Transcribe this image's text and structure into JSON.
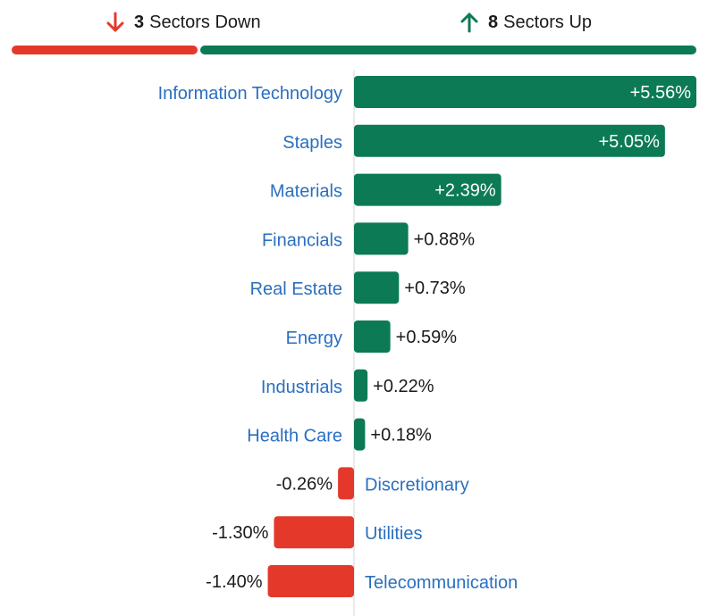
{
  "summary": {
    "down": {
      "count": "3",
      "label": "Sectors Down",
      "icon": "arrow-down-icon",
      "color": "#e4392a"
    },
    "up": {
      "count": "8",
      "label": "Sectors Up",
      "icon": "arrow-up-icon",
      "color": "#0b7a55"
    }
  },
  "colors": {
    "positive": "#0b7a55",
    "negative": "#e4392a",
    "label": "#2a6fbf",
    "value_dark": "#1a1a1a",
    "value_light": "#ffffff"
  },
  "chart_data": {
    "type": "bar",
    "orientation": "horizontal",
    "unit": "%",
    "categories": [
      "Information Technology",
      "Staples",
      "Materials",
      "Financials",
      "Real Estate",
      "Energy",
      "Industrials",
      "Health Care",
      "Discretionary",
      "Utilities",
      "Telecommunication"
    ],
    "values": [
      5.56,
      5.05,
      2.39,
      0.88,
      0.73,
      0.59,
      0.22,
      0.18,
      -0.26,
      -1.3,
      -1.4
    ],
    "value_labels": [
      "+5.56%",
      "+5.05%",
      "+2.39%",
      "+0.88%",
      "+0.73%",
      "+0.59%",
      "+0.22%",
      "+0.18%",
      "-0.26%",
      "-1.30%",
      "-1.40%"
    ],
    "xlim": [
      -1.4,
      5.56
    ],
    "grid": false,
    "legend": "none"
  }
}
